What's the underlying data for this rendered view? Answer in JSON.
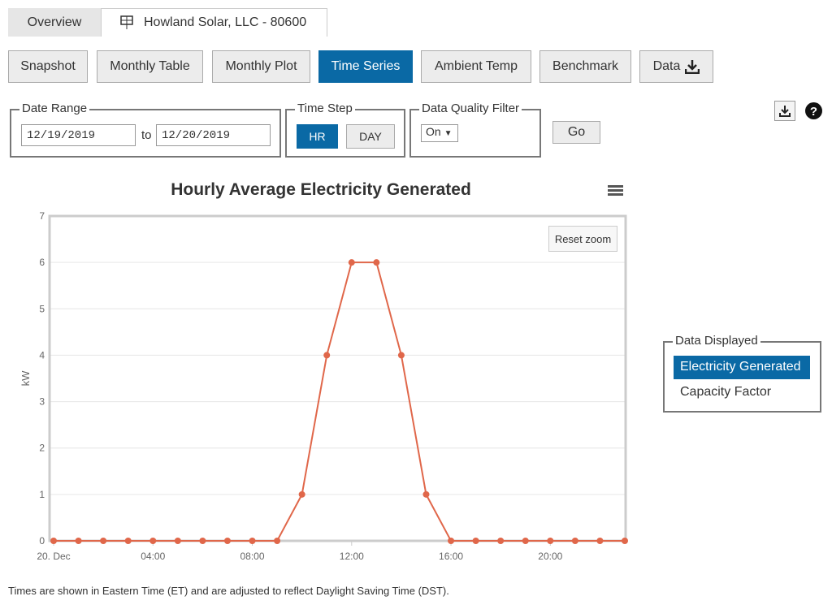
{
  "tabs": [
    "Overview",
    "Howland Solar, LLC - 80600"
  ],
  "nav_buttons": [
    "Snapshot",
    "Monthly Table",
    "Monthly Plot",
    "Time Series",
    "Ambient Temp",
    "Benchmark",
    "Data"
  ],
  "filters": {
    "date_range": {
      "label": "Date Range",
      "start": "12/19/2019",
      "separator": "to",
      "end": "12/20/2019"
    },
    "time_step": {
      "label": "Time Step",
      "options": [
        "HR",
        "DAY"
      ]
    },
    "quality": {
      "label": "Data Quality Filter",
      "value": "On"
    },
    "go": "Go"
  },
  "chart_controls": {
    "reset_zoom": "Reset zoom"
  },
  "chart_data": {
    "type": "line",
    "title": "Hourly Average Electricity Generated",
    "y_label": "kW",
    "x": [
      0,
      1,
      2,
      3,
      4,
      5,
      6,
      7,
      8,
      9,
      10,
      11,
      12,
      13,
      14,
      15,
      16,
      17,
      18,
      19,
      20,
      21,
      22,
      23
    ],
    "values": [
      0,
      0,
      0,
      0,
      0,
      0,
      0,
      0,
      0,
      0,
      1,
      4,
      6,
      6,
      4,
      1,
      0,
      0,
      0,
      0,
      0,
      0,
      0,
      0
    ],
    "color": "#e0674a",
    "xlim": [
      0,
      23
    ],
    "xticks": [
      {
        "value": 0,
        "label": "20. Dec"
      },
      {
        "value": 4,
        "label": "04:00"
      },
      {
        "value": 8,
        "label": "08:00"
      },
      {
        "value": 12,
        "label": "12:00"
      },
      {
        "value": 16,
        "label": "16:00"
      },
      {
        "value": 20,
        "label": "20:00"
      }
    ],
    "ylim": [
      0,
      7
    ],
    "yticks": [
      0,
      1,
      2,
      3,
      4,
      5,
      6,
      7
    ],
    "grid": true
  },
  "data_displayed": {
    "label": "Data Displayed",
    "options": [
      "Electricity Generated",
      "Capacity Factor"
    ]
  },
  "footnote": "Times are shown in Eastern Time (ET) and are adjusted to reflect Daylight Saving Time (DST)."
}
